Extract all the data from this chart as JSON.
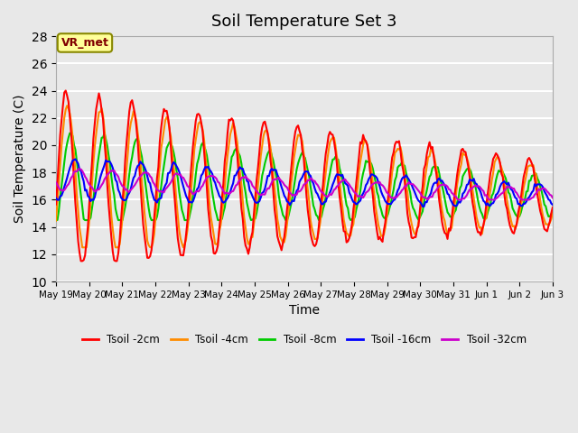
{
  "title": "Soil Temperature Set 3",
  "xlabel": "Time",
  "ylabel": "Soil Temperature (C)",
  "ylim": [
    10,
    28
  ],
  "yticks": [
    10,
    12,
    14,
    16,
    18,
    20,
    22,
    24,
    26,
    28
  ],
  "background_color": "#e8e8e8",
  "axes_bg_color": "#e8e8e8",
  "grid_color": "white",
  "annotation_text": "VR_met",
  "annotation_box_color": "#ffff99",
  "annotation_text_color": "#800000",
  "legend_entries": [
    "Tsoil -2cm",
    "Tsoil -4cm",
    "Tsoil -8cm",
    "Tsoil -16cm",
    "Tsoil -32cm"
  ],
  "line_colors": [
    "#ff0000",
    "#ff8c00",
    "#00cc00",
    "#0000ff",
    "#cc00cc"
  ],
  "line_widths": [
    1.5,
    1.5,
    1.5,
    1.5,
    1.5
  ],
  "x_tick_labels": [
    "May 19",
    "May 20",
    "May 21",
    "May 22",
    "May 23",
    "May 24",
    "May 25",
    "May 26",
    "May 27",
    "May 28",
    "May 29",
    "May 30",
    "May 31",
    "Jun 1",
    "Jun 2",
    "Jun 3"
  ],
  "num_days": 15,
  "points_per_day": 24
}
